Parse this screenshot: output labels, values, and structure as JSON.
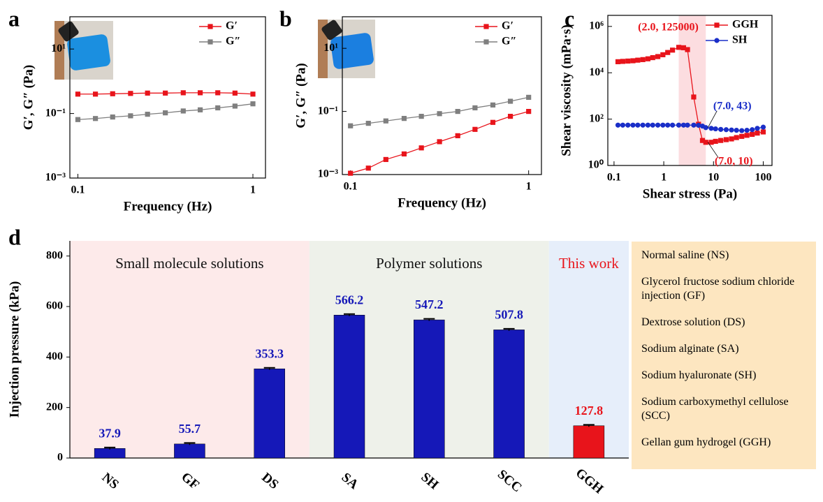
{
  "chart_data": [
    {
      "panel_label": "a",
      "type": "line",
      "xlabel": "Frequency (Hz)",
      "ylabel": "G′, G″ (Pa)",
      "xscale": "log",
      "yscale": "log",
      "x": [
        0.1,
        0.126,
        0.158,
        0.2,
        0.25,
        0.316,
        0.4,
        0.5,
        0.63,
        0.79,
        1.0
      ],
      "series": [
        {
          "name": "G′",
          "color": "#e8141b",
          "marker": "square",
          "values": [
            0.4,
            0.4,
            0.41,
            0.42,
            0.43,
            0.43,
            0.44,
            0.44,
            0.44,
            0.43,
            0.4
          ]
        },
        {
          "name": "G″",
          "color": "#7f7f7f",
          "marker": "square",
          "values": [
            0.065,
            0.07,
            0.078,
            0.085,
            0.095,
            0.105,
            0.12,
            0.13,
            0.15,
            0.17,
            0.2
          ]
        }
      ],
      "xlim": [
        0.09,
        1.18
      ],
      "ylim": [
        0.001,
        100
      ],
      "xticks": [
        0.1,
        1
      ],
      "yticks": [
        {
          "value": 0.001,
          "label": "10⁻³"
        },
        {
          "value": 0.1,
          "label": "10⁻¹"
        },
        {
          "value": 10,
          "label": "10¹"
        }
      ],
      "legend": "upper right"
    },
    {
      "panel_label": "b",
      "type": "line",
      "xlabel": "Frequency (Hz)",
      "ylabel": "G′, G″ (Pa)",
      "xscale": "log",
      "yscale": "log",
      "x": [
        0.1,
        0.126,
        0.158,
        0.2,
        0.25,
        0.316,
        0.4,
        0.5,
        0.63,
        0.79,
        1.0
      ],
      "series": [
        {
          "name": "G′",
          "color": "#e8141b",
          "marker": "square",
          "values": [
            0.0011,
            0.0016,
            0.003,
            0.0045,
            0.007,
            0.011,
            0.017,
            0.027,
            0.045,
            0.07,
            0.1
          ]
        },
        {
          "name": "G″",
          "color": "#7f7f7f",
          "marker": "square",
          "values": [
            0.035,
            0.042,
            0.05,
            0.06,
            0.07,
            0.085,
            0.1,
            0.13,
            0.16,
            0.21,
            0.28
          ]
        }
      ],
      "xlim": [
        0.09,
        1.18
      ],
      "ylim": [
        0.001,
        100
      ],
      "xticks": [
        0.1,
        1
      ],
      "yticks": [
        {
          "value": 0.001,
          "label": "10⁻³"
        },
        {
          "value": 0.1,
          "label": "10⁻¹"
        },
        {
          "value": 10,
          "label": "10¹"
        }
      ],
      "legend": "upper right"
    },
    {
      "panel_label": "c",
      "type": "line",
      "xlabel": "Shear stress (Pa)",
      "ylabel": "Shear viscosity (mPa·s)",
      "xscale": "log",
      "yscale": "log",
      "x": [
        0.12,
        0.15,
        0.19,
        0.24,
        0.3,
        0.38,
        0.48,
        0.6,
        0.76,
        0.96,
        1.2,
        1.5,
        2.0,
        2.5,
        3,
        4,
        5,
        6,
        7,
        9,
        11,
        14,
        18,
        23,
        29,
        37,
        47,
        60,
        76,
        100
      ],
      "series": [
        {
          "name": "GGH",
          "color": "#e8141b",
          "marker": "square",
          "values": [
            30000,
            31000,
            32000,
            33000,
            35000,
            37000,
            40000,
            45000,
            50000,
            60000,
            75000,
            95000,
            125000,
            120000,
            100000,
            900,
            60,
            12,
            10,
            10,
            11,
            12,
            13,
            14,
            16,
            18,
            20,
            22,
            25,
            28
          ]
        },
        {
          "name": "SH",
          "color": "#1a2ec8",
          "marker": "circle",
          "values": [
            55,
            55,
            55,
            55,
            55,
            55,
            55,
            55,
            55,
            55,
            55,
            55,
            55,
            55,
            55,
            55,
            54,
            50,
            43,
            40,
            38,
            36,
            35,
            34,
            33,
            32,
            33,
            35,
            40,
            45
          ]
        }
      ],
      "xlim": [
        0.075,
        150
      ],
      "ylim": [
        1,
        3000000
      ],
      "xticks": [
        0.1,
        1,
        10,
        100
      ],
      "yticks": [
        {
          "value": 1,
          "label": "10⁰"
        },
        {
          "value": 100,
          "label": "10²"
        },
        {
          "value": 10000,
          "label": "10⁴"
        },
        {
          "value": 1000000,
          "label": "10⁶"
        }
      ],
      "shade_x": [
        2,
        7
      ],
      "shade_color": "#fbd5d8",
      "annotations": [
        {
          "text": "(2.0, 125000)",
          "x": 2.0,
          "y": 125000,
          "color": "#e8141b"
        },
        {
          "text": "(7.0, 43)",
          "x": 7.0,
          "y": 43,
          "color": "#1a2ec8"
        },
        {
          "text": "(7.0, 10)",
          "x": 7.0,
          "y": 10,
          "color": "#e8141b"
        }
      ],
      "legend": "upper right"
    },
    {
      "panel_label": "d",
      "type": "bar",
      "ylabel": "Injection pressure (kPa)",
      "categories": [
        "NS",
        "GF",
        "DS",
        "SA",
        "SH",
        "SCC",
        "GGH"
      ],
      "values": [
        37.9,
        55.7,
        353.3,
        566.2,
        547.2,
        507.8,
        127.8
      ],
      "errors": [
        4,
        4,
        4,
        4,
        4,
        4,
        4
      ],
      "colors": [
        "#1518b8",
        "#1518b8",
        "#1518b8",
        "#1518b8",
        "#1518b8",
        "#1518b8",
        "#e8141b"
      ],
      "ylim": [
        0,
        860
      ],
      "yticks": [
        0,
        200,
        400,
        600,
        800
      ],
      "groups": [
        {
          "label": "Small molecule solutions",
          "count": 3,
          "color": "#fdeaea",
          "label_color": "#111111"
        },
        {
          "label": "Polymer solutions",
          "count": 3,
          "color": "#eef1ea",
          "label_color": "#111111"
        },
        {
          "label": "This work",
          "count": 1,
          "color": "#e6eefa",
          "label_color": "#e8141b"
        }
      ],
      "abbreviations": [
        "Normal saline (NS)",
        "Glycerol fructose sodium chloride injection (GF)",
        "Dextrose solution (DS)",
        "Sodium alginate (SA)",
        "Sodium hyaluronate (SH)",
        "Sodium carboxymethyl cellulose (SCC)",
        "Gellan gum hydrogel (GGH)"
      ],
      "abbreviations_color": "#fde6c0"
    }
  ]
}
